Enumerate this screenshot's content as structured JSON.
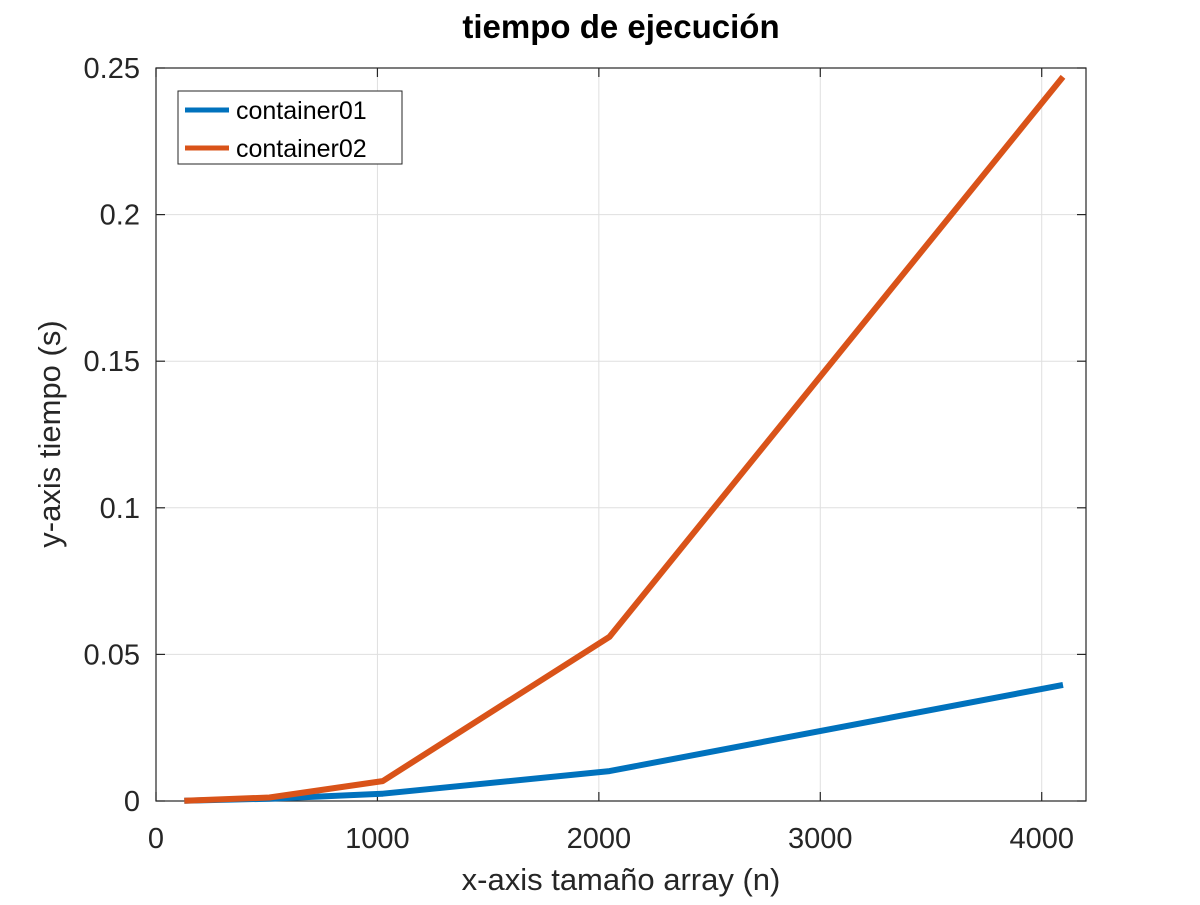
{
  "chart_data": {
    "type": "line",
    "title": "tiempo de ejecución",
    "xlabel": "x-axis tamaño array (n)",
    "ylabel": "y-axis tiempo (s)",
    "xlim": [
      0,
      4200
    ],
    "ylim": [
      0,
      0.25
    ],
    "xticks": [
      0,
      1000,
      2000,
      3000,
      4000
    ],
    "xtick_labels": [
      "0",
      "1000",
      "2000",
      "3000",
      "4000"
    ],
    "yticks": [
      0,
      0.05,
      0.1,
      0.15,
      0.2,
      0.25
    ],
    "ytick_labels": [
      "0",
      "0.05",
      "0.1",
      "0.15",
      "0.2",
      "0.25"
    ],
    "grid": true,
    "legend_position": "top-left",
    "x": [
      128,
      512,
      1024,
      2048,
      4096
    ],
    "series": [
      {
        "name": "container01",
        "color": "#0072BD",
        "values": [
          0.0001,
          0.0008,
          0.0025,
          0.0102,
          0.0396
        ]
      },
      {
        "name": "container02",
        "color": "#D95319",
        "values": [
          0.0001,
          0.0012,
          0.0068,
          0.056,
          0.247
        ]
      }
    ]
  }
}
